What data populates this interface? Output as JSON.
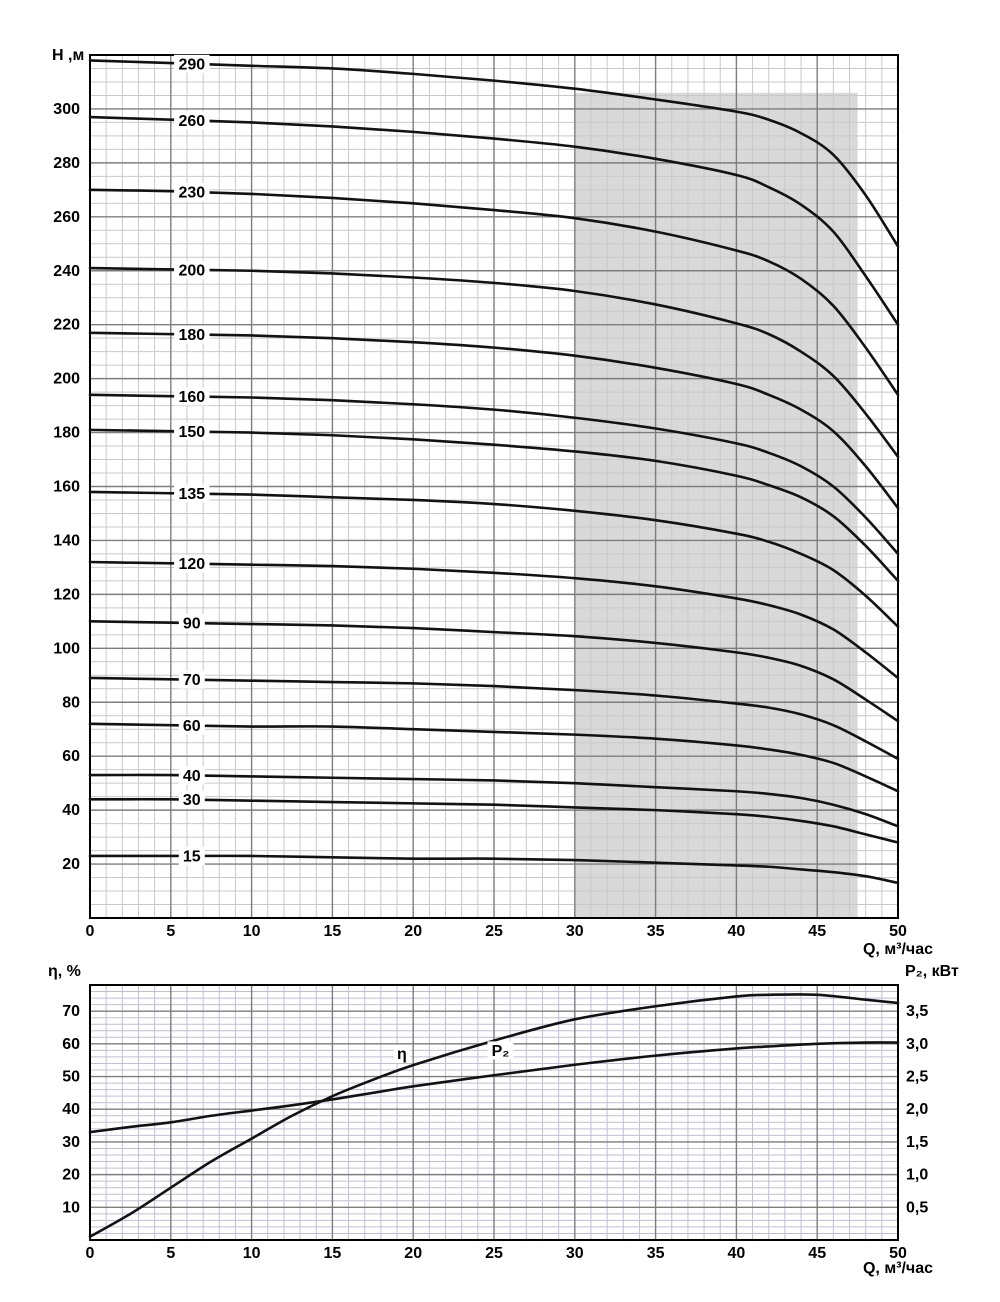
{
  "colors": {
    "curve": "#121212",
    "grid_major": "#7d7d7d",
    "grid_minor_top": "#c9c9c9",
    "grid_minor_bottom": "#bfbfd6",
    "band": "#d9d9d9",
    "border": "#000000",
    "background": "#ffffff"
  },
  "chart_data": [
    {
      "type": "line",
      "name": "head-vs-flow",
      "title": "",
      "xlabel": "Q, м³/час",
      "ylabel": "H ,м",
      "xlim": [
        0,
        50
      ],
      "ylim": [
        0,
        320
      ],
      "grid": true,
      "x_major_step": 5,
      "x_minor_step": 1,
      "y_major_step": 20,
      "y_minor_step": 5,
      "x_ticks": [
        0,
        5,
        10,
        15,
        20,
        25,
        30,
        35,
        40,
        45,
        50
      ],
      "y_ticks": [
        20,
        40,
        60,
        80,
        100,
        120,
        140,
        160,
        180,
        200,
        220,
        240,
        260,
        280,
        300
      ],
      "recommended_band": {
        "q_from": 30,
        "q_to": 47.5,
        "h_from": 0,
        "h_to": 306
      },
      "curve_label_q": 6.3,
      "x": [
        0,
        5,
        10,
        15,
        20,
        25,
        30,
        35,
        40,
        42,
        44,
        46,
        48,
        50
      ],
      "series": [
        {
          "name": "290",
          "values": [
            318,
            317,
            316,
            315,
            313,
            310.5,
            307.5,
            303.5,
            299,
            296,
            291,
            283,
            268,
            249
          ]
        },
        {
          "name": "260",
          "values": [
            297,
            296,
            295,
            293.5,
            291.5,
            289,
            286,
            281.5,
            275.5,
            271,
            264.5,
            254.5,
            238,
            220
          ]
        },
        {
          "name": "230",
          "values": [
            270,
            269.5,
            268.5,
            267,
            265,
            262.5,
            259.5,
            254.5,
            247.5,
            243.5,
            237,
            227,
            211.5,
            194
          ]
        },
        {
          "name": "200",
          "values": [
            241,
            240.5,
            240,
            239,
            237.5,
            235.5,
            232.5,
            227.5,
            220.5,
            216.5,
            210,
            201,
            187,
            171
          ]
        },
        {
          "name": "180",
          "values": [
            217,
            216.5,
            216,
            215,
            213.5,
            211.5,
            208.5,
            204,
            198,
            194,
            188.5,
            180.5,
            167.5,
            152
          ]
        },
        {
          "name": "160",
          "values": [
            194,
            193.5,
            193,
            192,
            190.5,
            188.5,
            185.5,
            181.5,
            176,
            172.5,
            167.5,
            160,
            148.5,
            135
          ]
        },
        {
          "name": "150",
          "values": [
            181,
            180.5,
            180,
            179,
            177.5,
            175.5,
            173,
            169.5,
            164,
            160.5,
            156,
            149,
            138,
            125
          ]
        },
        {
          "name": "135",
          "values": [
            158,
            157.5,
            157,
            156,
            155,
            153.5,
            151,
            147.5,
            142.5,
            139.5,
            135,
            129,
            119.5,
            108
          ]
        },
        {
          "name": "120",
          "values": [
            132,
            131.5,
            131,
            130.5,
            129.5,
            128,
            126,
            123,
            118.5,
            116,
            112.5,
            107,
            98.5,
            89
          ]
        },
        {
          "name": "90",
          "values": [
            110,
            109.5,
            109,
            108.5,
            107.5,
            106,
            104.5,
            102,
            98.5,
            96.5,
            93.5,
            88.5,
            81,
            73
          ]
        },
        {
          "name": "70",
          "values": [
            89,
            88.5,
            88,
            87.5,
            87,
            86,
            84.5,
            82.5,
            79.5,
            78,
            75.5,
            71.5,
            65.5,
            59
          ]
        },
        {
          "name": "60",
          "values": [
            72,
            71.5,
            71,
            71,
            70,
            69,
            68,
            66.5,
            64,
            62.5,
            60.5,
            57.5,
            52.5,
            47
          ]
        },
        {
          "name": "40",
          "values": [
            53,
            53,
            52.5,
            52,
            51.5,
            51,
            50,
            48.5,
            47,
            46,
            44.5,
            42,
            38.5,
            34
          ]
        },
        {
          "name": "30",
          "values": [
            44,
            44,
            43.5,
            43,
            42.5,
            42,
            41,
            40,
            38.5,
            37.5,
            36,
            34,
            31,
            28
          ]
        },
        {
          "name": "15",
          "values": [
            23,
            23,
            23,
            22.5,
            22,
            22,
            21.5,
            20.5,
            19.5,
            19,
            18,
            17,
            15.5,
            13
          ]
        }
      ]
    },
    {
      "type": "line",
      "name": "efficiency-and-power-vs-flow",
      "title": "",
      "xlabel": "Q, м³/час",
      "ylabel_left": "η, %",
      "ylabel_right": "P₂, кВт",
      "xlim": [
        0,
        50
      ],
      "ylim_left": [
        0,
        78
      ],
      "ylim_right": [
        0,
        3.9
      ],
      "grid": true,
      "x_major_step": 5,
      "x_minor_step": 1,
      "y_major_step": 10,
      "y_minor_step": 2,
      "x_ticks": [
        0,
        5,
        10,
        15,
        20,
        25,
        30,
        35,
        40,
        45,
        50
      ],
      "y_left_ticks": [
        10,
        20,
        30,
        40,
        50,
        60,
        70
      ],
      "y_right_ticks": {
        "values": [
          0.5,
          1,
          1.5,
          2,
          2.5,
          3,
          3.5
        ],
        "labels": [
          "0,5",
          "1,0",
          "1,5",
          "2,0",
          "2,5",
          "3,0",
          "3,5"
        ]
      },
      "x": [
        0,
        2.5,
        5,
        7.5,
        10,
        12.5,
        15,
        17.5,
        20,
        25,
        30,
        35,
        40,
        42,
        45,
        48,
        50
      ],
      "series": [
        {
          "name": "η",
          "axis": "left",
          "label_at": {
            "q": 19.3,
            "v": 57
          },
          "values": [
            1,
            8,
            16,
            24,
            31,
            38,
            44,
            49,
            53.5,
            61,
            67.5,
            71.5,
            74.5,
            75,
            75,
            73.5,
            72.5
          ]
        },
        {
          "name": "P₂",
          "axis": "right",
          "label_at": {
            "q": 25.4,
            "v": 58
          },
          "values": [
            1.65,
            1.73,
            1.8,
            1.9,
            1.98,
            2.06,
            2.15,
            2.25,
            2.35,
            2.52,
            2.68,
            2.82,
            2.93,
            2.96,
            3.0,
            3.02,
            3.02
          ]
        }
      ]
    }
  ]
}
